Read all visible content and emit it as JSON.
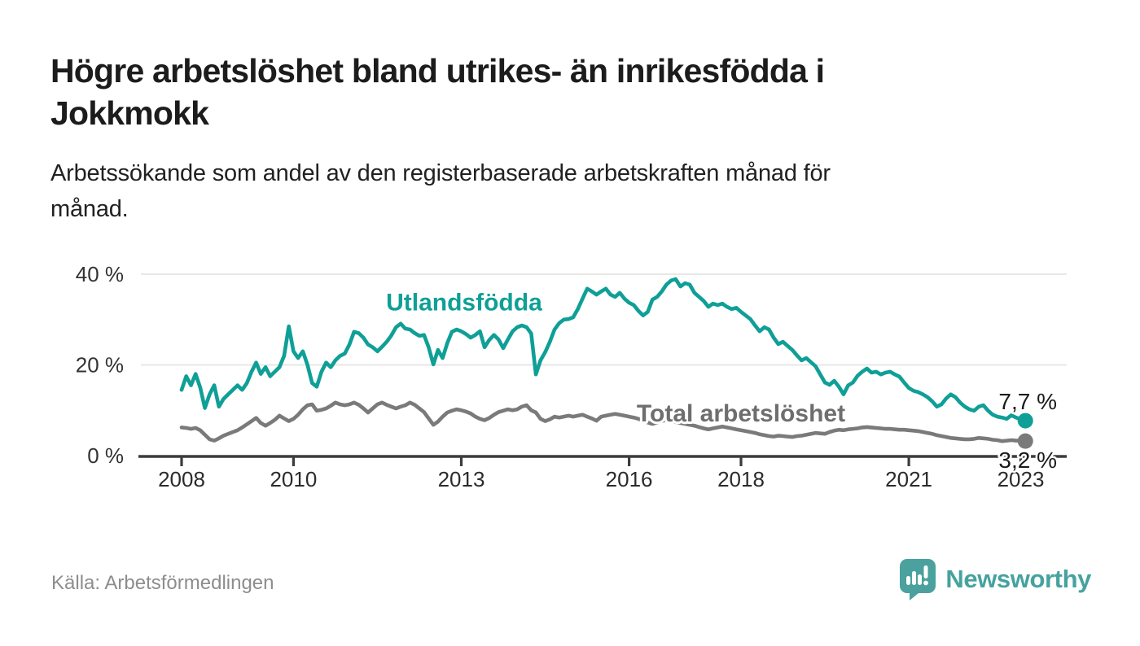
{
  "header": {
    "title_line1": "Högre arbetslöshet bland utrikes- än inrikesfödda i",
    "title_line2": "Jokkmokk",
    "subtitle_line1": "Arbetssökande som andel av den registerbaserade arbetskraften månad för",
    "subtitle_line2": "månad."
  },
  "footer": {
    "source": "Källa: Arbetsförmedlingen",
    "logo_text": "Newsworthy"
  },
  "colors": {
    "teal": "#0f9f97",
    "gray_line": "#7a7a7a",
    "gray_label": "#6e6e6e",
    "axis": "#3c3c3c",
    "grid": "#e4e4e4",
    "logo_teal": "#46a29f"
  },
  "chart_data": {
    "type": "line",
    "title": "Högre arbetslöshet bland utrikes- än inrikesfödda i Jokkmokk",
    "subtitle": "Arbetssökande som andel av den registerbaserade arbetskraften månad för månad.",
    "xlabel": "",
    "ylabel": "",
    "ylim": [
      0,
      42
    ],
    "x_start_year": 2008,
    "x_step_months": 1,
    "grid": "horizontal",
    "legend_position": "inline-labels",
    "y_ticks": [
      {
        "value": 0,
        "label": "0 %"
      },
      {
        "value": 20,
        "label": "20 %"
      },
      {
        "value": 40,
        "label": "40 %"
      }
    ],
    "x_ticks": [
      {
        "year": 2008,
        "label": "2008"
      },
      {
        "year": 2010,
        "label": "2010"
      },
      {
        "year": 2013,
        "label": "2013"
      },
      {
        "year": 2016,
        "label": "2016"
      },
      {
        "year": 2018,
        "label": "2018"
      },
      {
        "year": 2021,
        "label": "2021"
      },
      {
        "year": 2023,
        "label": "2023"
      }
    ],
    "series_labels": [
      {
        "text": "Utlandsfödda",
        "year": 2013.05,
        "value": 32.0,
        "series": 0
      },
      {
        "text": "Total arbetslöshet",
        "year": 2018.0,
        "value": 7.5,
        "series": 1
      }
    ],
    "series": [
      {
        "name": "Utlandsfödda",
        "color": "#0f9f97",
        "label_color": "#0f9f97",
        "end_label": "7,7 %",
        "end_value": 7.7,
        "values": [
          14.5,
          17.5,
          15.5,
          18.0,
          15.0,
          10.5,
          13.5,
          15.5,
          10.8,
          12.5,
          13.5,
          14.5,
          15.5,
          14.5,
          16.0,
          18.5,
          20.5,
          18.0,
          19.5,
          17.5,
          18.5,
          19.5,
          22.0,
          28.5,
          23.0,
          21.5,
          23.0,
          20.0,
          16.0,
          15.2,
          18.5,
          20.5,
          19.5,
          21.0,
          22.0,
          22.5,
          24.5,
          27.3,
          27.0,
          26.0,
          24.5,
          23.9,
          23.0,
          24.0,
          25.1,
          26.5,
          28.3,
          29.1,
          28.0,
          27.8,
          27.0,
          26.4,
          26.6,
          23.9,
          20.1,
          23.3,
          21.5,
          24.8,
          27.3,
          27.8,
          27.4,
          26.8,
          26.0,
          26.6,
          27.4,
          23.9,
          25.5,
          26.6,
          25.6,
          23.7,
          25.6,
          27.4,
          28.3,
          28.7,
          28.3,
          26.9,
          17.9,
          21.0,
          22.8,
          25.1,
          27.8,
          29.2,
          30.0,
          30.1,
          30.5,
          32.3,
          34.6,
          36.8,
          36.2,
          35.5,
          36.2,
          36.8,
          35.5,
          35.0,
          35.9,
          34.6,
          33.7,
          33.2,
          31.9,
          30.9,
          31.7,
          34.4,
          35.0,
          36.2,
          37.7,
          38.6,
          38.9,
          37.3,
          38.0,
          37.7,
          35.9,
          35.0,
          34.1,
          32.8,
          33.5,
          33.2,
          33.5,
          32.8,
          32.3,
          32.6,
          31.7,
          30.9,
          30.1,
          28.7,
          27.4,
          28.3,
          27.8,
          26.0,
          24.6,
          25.1,
          24.2,
          23.3,
          22.1,
          21.0,
          21.5,
          20.6,
          19.7,
          17.9,
          16.1,
          15.6,
          16.5,
          15.2,
          13.5,
          15.5,
          16.1,
          17.6,
          18.5,
          19.2,
          18.3,
          18.5,
          17.9,
          18.3,
          18.5,
          17.9,
          17.4,
          16.1,
          14.9,
          14.3,
          14.0,
          13.5,
          12.9,
          12.0,
          10.8,
          11.3,
          12.6,
          13.5,
          12.9,
          11.7,
          10.8,
          10.2,
          9.9,
          10.8,
          11.1,
          9.9,
          9.0,
          8.6,
          8.4,
          8.1,
          8.9,
          8.4,
          8.0,
          7.7
        ]
      },
      {
        "name": "Total arbetslöshet",
        "color": "#7a7a7a",
        "label_color": "#6e6e6e",
        "end_label": "3,2 %",
        "end_value": 3.2,
        "values": [
          6.2,
          6.1,
          5.9,
          6.1,
          5.6,
          4.6,
          3.6,
          3.3,
          3.8,
          4.4,
          4.8,
          5.2,
          5.6,
          6.2,
          6.9,
          7.6,
          8.3,
          7.2,
          6.6,
          7.2,
          7.9,
          8.8,
          8.2,
          7.6,
          8.1,
          9.0,
          10.2,
          11.1,
          11.3,
          9.9,
          10.1,
          10.4,
          11.0,
          11.7,
          11.3,
          11.1,
          11.3,
          11.7,
          11.2,
          10.4,
          9.5,
          10.4,
          11.3,
          11.7,
          11.2,
          10.8,
          10.4,
          10.8,
          11.1,
          11.7,
          11.2,
          10.4,
          9.6,
          8.2,
          6.8,
          7.5,
          8.6,
          9.5,
          9.9,
          10.2,
          10.0,
          9.7,
          9.3,
          8.6,
          8.1,
          7.8,
          8.3,
          9.0,
          9.6,
          9.9,
          10.2,
          10.0,
          10.2,
          10.8,
          11.1,
          10.0,
          9.5,
          8.1,
          7.6,
          8.0,
          8.6,
          8.4,
          8.6,
          8.8,
          8.6,
          8.8,
          9.0,
          8.6,
          8.2,
          7.7,
          8.6,
          8.8,
          9.0,
          9.2,
          9.0,
          8.8,
          8.6,
          8.4,
          8.1,
          7.7,
          7.3,
          7.0,
          7.3,
          7.6,
          7.9,
          7.7,
          7.4,
          7.2,
          7.0,
          6.8,
          6.6,
          6.3,
          6.0,
          5.8,
          6.0,
          6.2,
          6.4,
          6.2,
          6.0,
          5.8,
          5.6,
          5.4,
          5.2,
          5.0,
          4.7,
          4.5,
          4.3,
          4.2,
          4.4,
          4.3,
          4.2,
          4.1,
          4.3,
          4.4,
          4.6,
          4.8,
          5.0,
          4.9,
          4.8,
          5.2,
          5.5,
          5.7,
          5.6,
          5.8,
          5.9,
          6.0,
          6.2,
          6.3,
          6.2,
          6.1,
          6.0,
          5.9,
          5.9,
          5.8,
          5.7,
          5.7,
          5.6,
          5.5,
          5.4,
          5.2,
          5.0,
          4.8,
          4.5,
          4.3,
          4.1,
          3.9,
          3.8,
          3.7,
          3.6,
          3.6,
          3.7,
          3.9,
          3.8,
          3.7,
          3.5,
          3.4,
          3.2,
          3.3,
          3.4,
          3.3,
          3.3,
          3.2
        ]
      }
    ]
  }
}
